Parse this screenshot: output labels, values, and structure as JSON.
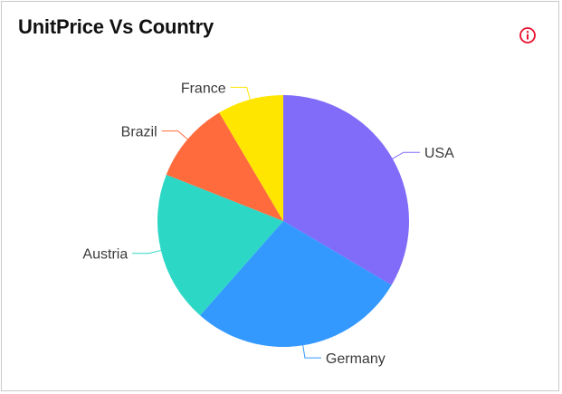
{
  "widget": {
    "title": "UnitPrice Vs Country",
    "info_icon": "info-circle-icon",
    "info_color": "#e8112d"
  },
  "chart_data": {
    "type": "pie",
    "title": "UnitPrice Vs Country",
    "start_angle_deg": 0,
    "direction": "clockwise",
    "legend": "none",
    "labels_outside": true,
    "slices": [
      {
        "label": "USA",
        "value": 33.5,
        "color": "#806cf9"
      },
      {
        "label": "Germany",
        "value": 28.0,
        "color": "#3399ff"
      },
      {
        "label": "Austria",
        "value": 19.5,
        "color": "#2cd8c5"
      },
      {
        "label": "Brazil",
        "value": 10.5,
        "color": "#ff6b3d"
      },
      {
        "label": "France",
        "value": 8.5,
        "color": "#ffe600"
      }
    ]
  }
}
